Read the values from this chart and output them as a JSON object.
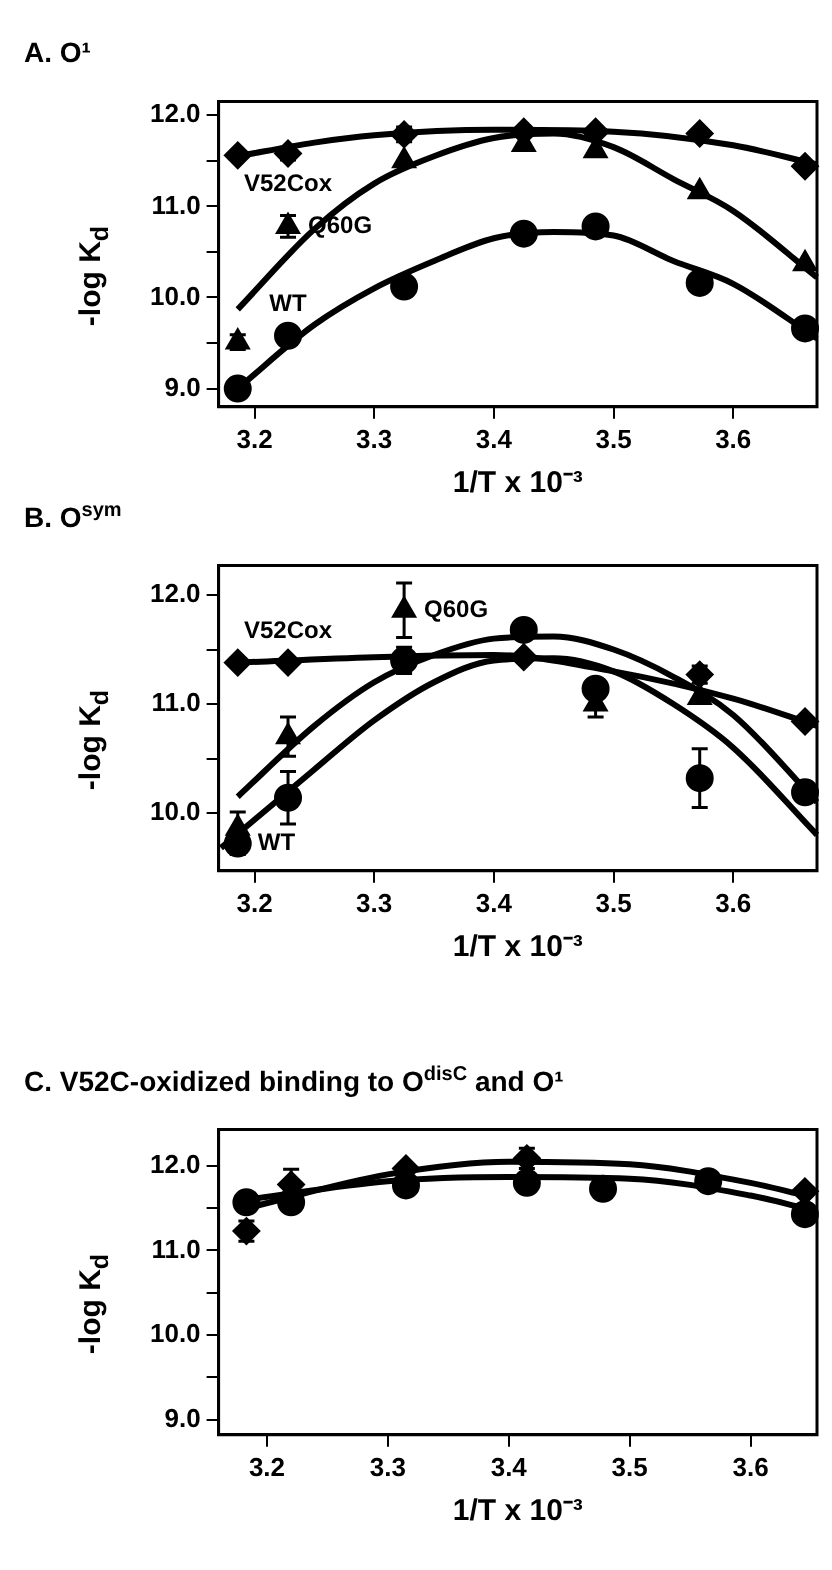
{
  "chart_data": [
    {
      "type": "scatter",
      "title": "A. O¹",
      "xlabel": "1/T x 10⁻³",
      "ylabel": "-log K$_{d}$",
      "xlim": [
        3.17,
        3.67
      ],
      "ylim": [
        8.8,
        12.15
      ],
      "xticks": [
        3.2,
        3.3,
        3.4,
        3.5,
        3.6
      ],
      "yticks": [
        {
          "value": 9,
          "label": "9.0"
        },
        {
          "value": 9.5,
          "label": null
        },
        {
          "value": 10,
          "label": "10.0"
        },
        {
          "value": 10.5,
          "label": null
        },
        {
          "value": 11,
          "label": "11.0"
        },
        {
          "value": 11.5,
          "label": null
        },
        {
          "value": 12,
          "label": "12.0"
        }
      ],
      "grid": false,
      "legend": false,
      "series": [
        {
          "name": "V52Cox",
          "marker": "diamond",
          "color": "#000000",
          "x": [
            3.186,
            3.228,
            3.325,
            3.425,
            3.485,
            3.572,
            3.66
          ],
          "values": [
            11.56,
            11.58,
            11.79,
            11.82,
            11.82,
            11.8,
            11.44
          ],
          "errors": [
            null,
            0.07,
            0.08,
            null,
            null,
            null,
            null
          ]
        },
        {
          "name": "Q60G",
          "marker": "triangle",
          "color": "#000000",
          "x": [
            3.186,
            3.228,
            3.325,
            3.425,
            3.485,
            3.572,
            3.66
          ],
          "values": [
            9.51,
            10.78,
            11.5,
            11.68,
            11.61,
            11.16,
            10.37
          ],
          "errors": [
            0.08,
            0.12,
            null,
            null,
            null,
            null,
            null
          ]
        },
        {
          "name": "WT",
          "marker": "circle",
          "color": "#000000",
          "x": [
            3.186,
            3.228,
            3.325,
            3.425,
            3.485,
            3.572,
            3.66
          ],
          "values": [
            9.0,
            9.58,
            10.12,
            10.7,
            10.78,
            10.16,
            9.66
          ]
        },
        {
          "type": "line",
          "marker": "none",
          "color": "#000000",
          "x": [
            3.186,
            3.25,
            3.3,
            3.4,
            3.5,
            3.6,
            3.67
          ],
          "values": [
            11.55,
            11.7,
            11.78,
            11.84,
            11.82,
            11.67,
            11.46
          ]
        },
        {
          "type": "line",
          "marker": "none",
          "color": "#000000",
          "x": [
            3.186,
            3.25,
            3.3,
            3.35,
            3.4,
            3.45,
            3.5,
            3.55,
            3.6,
            3.67
          ],
          "values": [
            9.87,
            10.75,
            11.25,
            11.55,
            11.75,
            11.8,
            11.65,
            11.3,
            10.95,
            10.22
          ]
        },
        {
          "type": "line",
          "marker": "none",
          "color": "#000000",
          "x": [
            3.186,
            3.25,
            3.3,
            3.35,
            3.4,
            3.45,
            3.5,
            3.55,
            3.6,
            3.67
          ],
          "values": [
            9.0,
            9.7,
            10.1,
            10.4,
            10.65,
            10.72,
            10.68,
            10.4,
            10.15,
            9.55
          ]
        }
      ]
    },
    {
      "type": "scatter",
      "title": "B. O$^{sym}$",
      "xlabel": "1/T x 10⁻³",
      "ylabel": "-log K$_{d}$",
      "xlim": [
        3.17,
        3.67
      ],
      "ylim": [
        9.47,
        12.27
      ],
      "xticks": [
        3.2,
        3.3,
        3.4,
        3.5,
        3.6
      ],
      "yticks": [
        {
          "value": 10,
          "label": "10.0"
        },
        {
          "value": 10.5,
          "label": null
        },
        {
          "value": 11,
          "label": "11.0"
        },
        {
          "value": 11.5,
          "label": null
        },
        {
          "value": 12,
          "label": "12.0"
        }
      ],
      "grid": false,
      "legend": false,
      "series": [
        {
          "name": "V52Cox",
          "marker": "diamond",
          "color": "#000000",
          "x": [
            3.186,
            3.228,
            3.425,
            3.572,
            3.66
          ],
          "values": [
            11.38,
            11.38,
            11.43,
            11.27,
            10.84
          ],
          "errors": [
            null,
            null,
            null,
            0.08,
            null
          ]
        },
        {
          "name": "Q60G",
          "marker": "triangle",
          "color": "#000000",
          "x": [
            3.186,
            3.228,
            3.325,
            3.425,
            3.485,
            3.572
          ],
          "values": [
            9.86,
            10.7,
            11.86,
            null,
            11.0,
            11.06
          ],
          "errors": [
            0.15,
            0.18,
            0.25,
            null,
            0.12,
            null
          ]
        },
        {
          "name": "WT",
          "marker": "circle",
          "color": "#000000",
          "x": [
            3.186,
            3.228,
            3.325,
            3.425,
            3.485,
            3.572,
            3.66
          ],
          "values": [
            9.72,
            10.14,
            11.4,
            11.68,
            11.14,
            10.32,
            10.19
          ],
          "errors": [
            0.1,
            0.24,
            0.12,
            null,
            null,
            0.27,
            null
          ]
        },
        {
          "type": "line",
          "marker": "none",
          "color": "#000000",
          "x": [
            3.186,
            3.3,
            3.4,
            3.5,
            3.6,
            3.67
          ],
          "values": [
            11.38,
            11.43,
            11.45,
            11.3,
            11.05,
            10.8
          ]
        },
        {
          "type": "line",
          "marker": "none",
          "color": "#000000",
          "x": [
            3.186,
            3.25,
            3.3,
            3.35,
            3.4,
            3.45,
            3.5,
            3.55,
            3.6,
            3.67
          ],
          "values": [
            10.15,
            10.8,
            11.2,
            11.45,
            11.6,
            11.62,
            11.5,
            11.25,
            10.9,
            10.1
          ]
        },
        {
          "type": "line",
          "marker": "none",
          "color": "#000000",
          "x": [
            3.172,
            3.25,
            3.3,
            3.35,
            3.4,
            3.45,
            3.5,
            3.55,
            3.6,
            3.67
          ],
          "values": [
            9.68,
            10.4,
            10.85,
            11.2,
            11.4,
            11.42,
            11.3,
            11.0,
            10.6,
            9.8
          ]
        }
      ]
    },
    {
      "type": "scatter",
      "title": "C. V52C-oxidized binding to O$^{disC}$ and O¹",
      "xlabel": "1/T x 10⁻³",
      "ylabel": "-log K$_{d}$",
      "xlim": [
        3.16,
        3.655
      ],
      "ylim": [
        8.82,
        12.43
      ],
      "xticks": [
        3.2,
        3.3,
        3.4,
        3.5,
        3.6
      ],
      "yticks": [
        {
          "value": 9,
          "label": "9.0"
        },
        {
          "value": 9.5,
          "label": null
        },
        {
          "value": 10,
          "label": "10.0"
        },
        {
          "value": 10.5,
          "label": null
        },
        {
          "value": 11,
          "label": "11.0"
        },
        {
          "value": 11.5,
          "label": null
        },
        {
          "value": 12,
          "label": "12.0"
        }
      ],
      "grid": false,
      "legend": false,
      "series": [
        {
          "marker": "circle",
          "color": "#000000",
          "x": [
            3.183,
            3.22,
            3.315,
            3.415,
            3.478,
            3.565,
            3.645
          ],
          "values": [
            11.57,
            11.57,
            11.77,
            11.8,
            11.73,
            11.82,
            11.43
          ]
        },
        {
          "marker": "diamond",
          "color": "#000000",
          "x": [
            3.183,
            3.22,
            3.315,
            3.415,
            3.565,
            3.645
          ],
          "values": [
            11.23,
            11.78,
            11.97,
            12.09,
            null,
            11.7
          ],
          "errors": [
            0.12,
            0.18,
            null,
            0.12,
            null,
            null
          ]
        },
        {
          "type": "line",
          "marker": "none",
          "color": "#000000",
          "x": [
            3.183,
            3.3,
            3.4,
            3.5,
            3.6,
            3.645
          ],
          "values": [
            11.5,
            11.9,
            12.05,
            12.02,
            11.8,
            11.65
          ]
        },
        {
          "type": "line",
          "marker": "none",
          "color": "#000000",
          "x": [
            3.183,
            3.3,
            3.4,
            3.5,
            3.6,
            3.645
          ],
          "values": [
            11.6,
            11.82,
            11.87,
            11.85,
            11.65,
            11.5
          ]
        }
      ]
    }
  ]
}
